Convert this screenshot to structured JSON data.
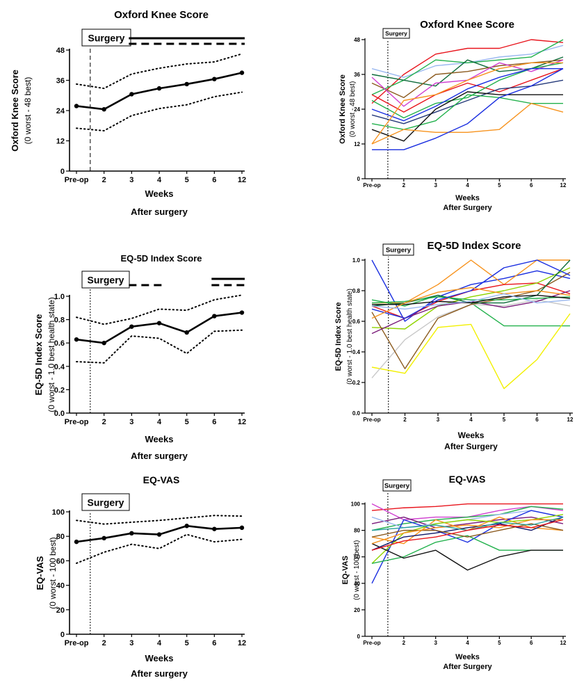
{
  "colors": {
    "red": "#e8141c",
    "orange": "#f7931e",
    "blue": "#1a2ee0",
    "green": "#22b14c",
    "lime": "#8fd400",
    "yellow": "#f2f000",
    "black": "#111111",
    "brown": "#8b5a1e",
    "grey": "#c8c8c8",
    "purple": "#7a1a7a",
    "lightblue": "#9ab8f0",
    "darkgreen": "#0d6b3a",
    "darkblue": "#10186a",
    "pink": "#d040d0",
    "navy": "#253a7a",
    "teal": "#2aa0a0"
  },
  "chart_data": [
    {
      "id": "oks_mean",
      "type": "line",
      "title": "Oxford Knee Score",
      "ylabel_main": "Oxford Knee Score",
      "ylabel_sub": "(0 worst - 48  best)",
      "xlabel": [
        "Weeks",
        "After surgery"
      ],
      "categories": [
        "Pre-op",
        "2",
        "3",
        "4",
        "5",
        "6",
        "12"
      ],
      "ylim": [
        0,
        48
      ],
      "yticks": [
        0,
        12,
        24,
        36,
        48
      ],
      "surgery_label": "Surgery",
      "surgery_at": 0.5,
      "mean": [
        25.8,
        24.5,
        30.5,
        32.8,
        34.5,
        36.5,
        39
      ],
      "upper": [
        34.5,
        32.8,
        38.5,
        40.8,
        42.5,
        43.3,
        46.5
      ],
      "lower": [
        17,
        16,
        22,
        24.8,
        26.3,
        29.5,
        31.3
      ],
      "sig_solid": [
        [
          3,
          12
        ]
      ],
      "sig_dashed": [
        [
          3,
          12
        ]
      ]
    },
    {
      "id": "oks_ind",
      "type": "line",
      "title": "Oxford Knee Score",
      "ylabel_main": "Oxford Knee Score",
      "ylabel_sub": "(0 worst - 48  best)",
      "xlabel": [
        "Weeks",
        "After Surgery"
      ],
      "categories": [
        "Pre-op",
        "2",
        "3",
        "4",
        "5",
        "6",
        "12"
      ],
      "ylim": [
        0,
        48
      ],
      "yticks": [
        0,
        12,
        24,
        36,
        48
      ],
      "surgery_label": "Surgery",
      "surgery_at": 0.5,
      "series": [
        {
          "color": "red",
          "values": [
            26,
            36,
            43,
            45,
            45,
            48,
            47
          ]
        },
        {
          "color": "lightblue",
          "values": [
            38,
            35,
            39,
            40,
            42,
            43,
            46
          ]
        },
        {
          "color": "green",
          "values": [
            29,
            34,
            41,
            40,
            41,
            42,
            48
          ]
        },
        {
          "color": "darkgreen",
          "values": [
            36,
            34,
            32,
            41,
            37,
            38,
            42
          ]
        },
        {
          "color": "brown",
          "values": [
            33,
            28,
            36,
            37,
            39,
            40,
            41
          ]
        },
        {
          "color": "pink",
          "values": [
            35,
            25,
            33,
            34,
            40,
            37,
            41
          ]
        },
        {
          "color": "red",
          "values": [
            29,
            23,
            29,
            33,
            30,
            34,
            38
          ]
        },
        {
          "color": "green",
          "values": [
            27,
            21,
            26,
            28,
            34,
            38,
            40
          ]
        },
        {
          "color": "blue",
          "values": [
            24,
            20,
            25,
            31,
            35,
            38,
            38
          ]
        },
        {
          "color": "navy",
          "values": [
            22,
            19,
            23,
            27,
            31,
            32,
            34
          ]
        },
        {
          "color": "green",
          "values": [
            19,
            17,
            20,
            29,
            28,
            26,
            26
          ]
        },
        {
          "color": "black",
          "values": [
            17,
            13,
            24,
            30,
            29,
            29,
            29
          ]
        },
        {
          "color": "orange",
          "values": [
            12,
            17,
            16,
            16,
            17,
            26,
            23
          ]
        },
        {
          "color": "blue",
          "values": [
            10,
            10,
            14,
            19,
            28,
            32,
            38
          ]
        },
        {
          "color": "orange",
          "values": [
            12,
            27,
            29,
            34,
            38,
            40,
            40
          ]
        }
      ]
    },
    {
      "id": "eq5d_mean",
      "type": "line",
      "title": "EQ-5D Index Score",
      "ylabel_main": "EQ-5D Index Score",
      "ylabel_sub": "(0 worst - 1.0 best health state)",
      "xlabel": [
        "Weeks",
        "After surgery"
      ],
      "categories": [
        "Pre-op",
        "2",
        "3",
        "4",
        "5",
        "6",
        "12"
      ],
      "ylim": [
        0,
        1.1
      ],
      "yticks": [
        0.0,
        0.2,
        0.4,
        0.6,
        0.8,
        1.0
      ],
      "surgery_label": "Surgery",
      "surgery_at": 0.5,
      "mean": [
        0.63,
        0.6,
        0.74,
        0.77,
        0.69,
        0.83,
        0.86
      ],
      "upper": [
        0.82,
        0.76,
        0.81,
        0.89,
        0.88,
        0.97,
        1.01
      ],
      "lower": [
        0.44,
        0.43,
        0.66,
        0.64,
        0.51,
        0.7,
        0.71
      ],
      "sig_solid": [
        [
          6,
          12
        ]
      ],
      "sig_dashed": [
        [
          3,
          4
        ],
        [
          6,
          12
        ]
      ]
    },
    {
      "id": "eq5d_ind",
      "type": "line",
      "title": "EQ-5D Index Score",
      "ylabel_main": "EQ-5D Index Score",
      "ylabel_sub": "(0 worst - 1.0 best health state)",
      "xlabel": [
        "Weeks",
        "After Surgery"
      ],
      "categories": [
        "Pre-op",
        "2",
        "3",
        "4",
        "5",
        "6",
        "12"
      ],
      "ylim": [
        0,
        1.0
      ],
      "yticks": [
        0.0,
        0.2,
        0.4,
        0.6,
        0.8,
        1.0
      ],
      "surgery_label": "Surgery",
      "surgery_at": 0.5,
      "series": [
        {
          "color": "blue",
          "values": [
            1.0,
            0.6,
            0.76,
            0.84,
            0.88,
            0.93,
            0.88
          ]
        },
        {
          "color": "orange",
          "values": [
            0.72,
            0.72,
            0.84,
            1.0,
            0.84,
            1.0,
            1.0
          ]
        },
        {
          "color": "red",
          "values": [
            0.7,
            0.62,
            0.73,
            0.8,
            0.84,
            0.85,
            0.78
          ]
        },
        {
          "color": "green",
          "values": [
            0.74,
            0.7,
            0.77,
            0.72,
            0.57,
            0.57,
            0.57
          ]
        },
        {
          "color": "lime",
          "values": [
            0.56,
            0.55,
            0.7,
            0.76,
            0.8,
            0.85,
            0.95
          ]
        },
        {
          "color": "yellow",
          "values": [
            0.3,
            0.26,
            0.56,
            0.58,
            0.16,
            0.35,
            0.65
          ]
        },
        {
          "color": "grey",
          "values": [
            0.23,
            0.48,
            0.63,
            0.71,
            0.7,
            0.74,
            0.7
          ]
        },
        {
          "color": "brown",
          "values": [
            0.66,
            0.29,
            0.62,
            0.71,
            0.75,
            0.8,
            0.92
          ]
        },
        {
          "color": "purple",
          "values": [
            0.52,
            0.62,
            0.7,
            0.73,
            0.69,
            0.73,
            0.8
          ]
        },
        {
          "color": "darkgreen",
          "values": [
            0.7,
            0.72,
            0.77,
            0.72,
            0.72,
            0.77,
            1.0
          ]
        },
        {
          "color": "green",
          "values": [
            0.72,
            0.73,
            0.76,
            0.74,
            0.74,
            0.75,
            0.76
          ]
        },
        {
          "color": "black",
          "values": [
            0.71,
            0.71,
            0.73,
            0.72,
            0.76,
            0.77,
            0.75
          ]
        },
        {
          "color": "blue",
          "values": [
            0.68,
            0.62,
            0.74,
            0.8,
            0.95,
            1.0,
            0.9
          ]
        },
        {
          "color": "orange",
          "values": [
            0.62,
            0.72,
            0.79,
            0.82,
            0.78,
            0.8,
            0.77
          ]
        },
        {
          "color": "lightblue",
          "values": [
            0.7,
            0.68,
            0.71,
            0.73,
            0.78,
            0.72,
            0.74
          ]
        }
      ]
    },
    {
      "id": "eqvas_mean",
      "type": "line",
      "title": "EQ-VAS",
      "ylabel_main": "EQ-VAS",
      "ylabel_sub": "(0 worst - 100 best)",
      "xlabel": [
        "Weeks",
        "After surgery"
      ],
      "categories": [
        "Pre-op",
        "2",
        "3",
        "4",
        "5",
        "6",
        "12"
      ],
      "ylim": [
        0,
        110
      ],
      "yticks": [
        0,
        20,
        40,
        60,
        80,
        100
      ],
      "surgery_label": "Surgery",
      "surgery_at": 0.5,
      "mean": [
        75.5,
        78.5,
        82.5,
        81.5,
        88.5,
        86,
        87
      ],
      "upper": [
        93,
        90,
        91.5,
        93,
        95,
        97,
        96.5
      ],
      "lower": [
        58,
        67,
        73.5,
        70,
        81.5,
        75.5,
        77.5
      ],
      "sig_solid": [],
      "sig_dashed": []
    },
    {
      "id": "eqvas_ind",
      "type": "line",
      "title": "EQ-VAS",
      "ylabel_main": "EQ-VAS",
      "ylabel_sub": "(0 worst - 100 best)",
      "xlabel": [
        "Weeks",
        "After Surgery"
      ],
      "categories": [
        "Pre-op",
        "2",
        "3",
        "4",
        "5",
        "6",
        "12"
      ],
      "ylim": [
        0,
        105
      ],
      "yticks": [
        0,
        20,
        40,
        60,
        80,
        100
      ],
      "surgery_label": "Surgery",
      "surgery_at": 0.5,
      "series": [
        {
          "color": "red",
          "values": [
            95,
            97,
            98,
            100,
            100,
            100,
            100
          ]
        },
        {
          "color": "pink",
          "values": [
            100,
            88,
            90,
            90,
            95,
            98,
            95
          ]
        },
        {
          "color": "green",
          "values": [
            80,
            85,
            88,
            90,
            92,
            98,
            96
          ]
        },
        {
          "color": "purple",
          "values": [
            85,
            90,
            82,
            85,
            88,
            90,
            85
          ]
        },
        {
          "color": "orange",
          "values": [
            75,
            70,
            88,
            80,
            90,
            82,
            80
          ]
        },
        {
          "color": "lightblue",
          "values": [
            90,
            82,
            85,
            88,
            92,
            95,
            90
          ]
        },
        {
          "color": "blue",
          "values": [
            40,
            88,
            80,
            71,
            85,
            95,
            90
          ]
        },
        {
          "color": "lime",
          "values": [
            55,
            78,
            85,
            88,
            86,
            88,
            92
          ]
        },
        {
          "color": "green",
          "values": [
            55,
            60,
            71,
            76,
            65,
            65,
            65
          ]
        },
        {
          "color": "black",
          "values": [
            70,
            59,
            65,
            50,
            60,
            65,
            65
          ]
        },
        {
          "color": "darkblue",
          "values": [
            65,
            75,
            78,
            82,
            85,
            80,
            90
          ]
        },
        {
          "color": "brown",
          "values": [
            75,
            80,
            80,
            75,
            80,
            85,
            80
          ]
        },
        {
          "color": "orange",
          "values": [
            70,
            78,
            82,
            84,
            82,
            88,
            88
          ]
        },
        {
          "color": "teal",
          "values": [
            80,
            82,
            84,
            80,
            86,
            84,
            90
          ]
        },
        {
          "color": "red",
          "values": [
            65,
            72,
            75,
            80,
            84,
            82,
            88
          ]
        }
      ]
    }
  ]
}
